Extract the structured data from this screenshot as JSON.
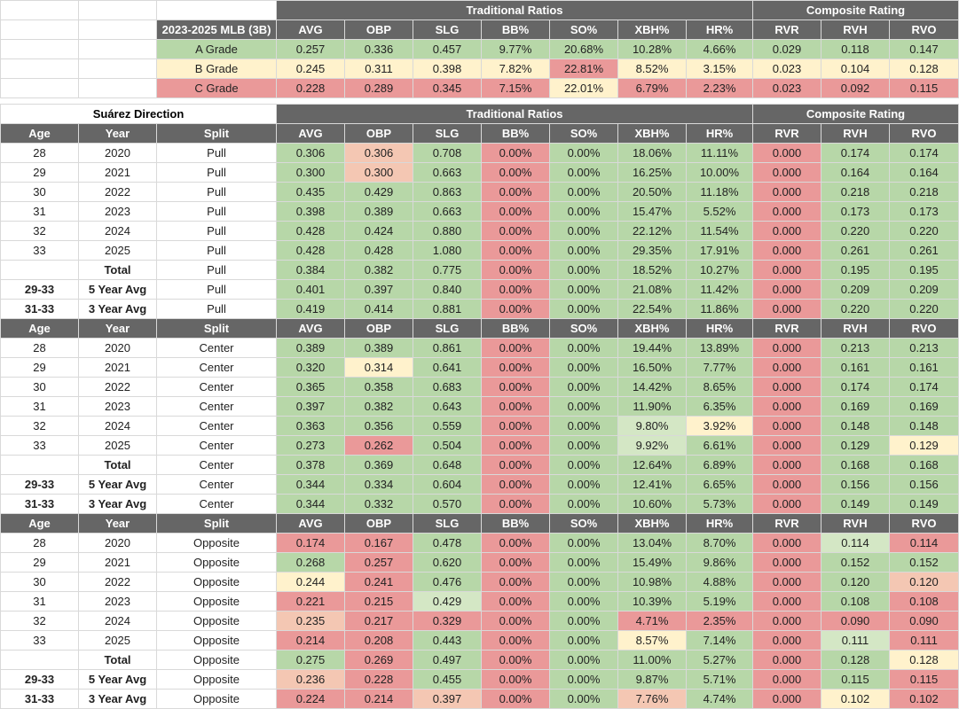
{
  "grade_table": {
    "label": "2023-2025 MLB (3B)",
    "group_traditional": "Traditional Ratios",
    "group_composite": "Composite Rating",
    "columns": [
      "AVG",
      "OBP",
      "SLG",
      "BB%",
      "SO%",
      "XBH%",
      "HR%",
      "RVR",
      "RVH",
      "RVO"
    ],
    "rows": [
      {
        "grade": "A Grade",
        "values": [
          "0.257",
          "0.336",
          "0.457",
          "9.77%",
          "20.68%",
          "10.28%",
          "4.66%",
          "0.029",
          "0.118",
          "0.147"
        ]
      },
      {
        "grade": "B Grade",
        "values": [
          "0.245",
          "0.311",
          "0.398",
          "7.82%",
          "22.81%",
          "8.52%",
          "3.15%",
          "0.023",
          "0.104",
          "0.128"
        ]
      },
      {
        "grade": "C Grade",
        "values": [
          "0.228",
          "0.289",
          "0.345",
          "7.15%",
          "22.01%",
          "6.79%",
          "2.23%",
          "0.023",
          "0.092",
          "0.115"
        ]
      }
    ]
  },
  "colors": {
    "green": "#b7d7a8",
    "light_green": "#d4e7c5",
    "yellow": "#fff2cc",
    "orange": "#f4c7b3",
    "red": "#ea9999",
    "header": "#666666"
  },
  "main": {
    "title": "Suárez Direction",
    "group_traditional": "Traditional Ratios",
    "group_composite": "Composite Rating",
    "columns": [
      "Age",
      "Year",
      "Split",
      "AVG",
      "OBP",
      "SLG",
      "BB%",
      "SO%",
      "XBH%",
      "HR%",
      "RVR",
      "RVH",
      "RVO"
    ],
    "sections": [
      {
        "split": "Pull",
        "rows": [
          [
            "28",
            "2020",
            "Pull",
            "0.306",
            "0.306",
            "0.708",
            "0.00%",
            "0.00%",
            "18.06%",
            "11.11%",
            "0.000",
            "0.174",
            "0.174"
          ],
          [
            "29",
            "2021",
            "Pull",
            "0.300",
            "0.300",
            "0.663",
            "0.00%",
            "0.00%",
            "16.25%",
            "10.00%",
            "0.000",
            "0.164",
            "0.164"
          ],
          [
            "30",
            "2022",
            "Pull",
            "0.435",
            "0.429",
            "0.863",
            "0.00%",
            "0.00%",
            "20.50%",
            "11.18%",
            "0.000",
            "0.218",
            "0.218"
          ],
          [
            "31",
            "2023",
            "Pull",
            "0.398",
            "0.389",
            "0.663",
            "0.00%",
            "0.00%",
            "15.47%",
            "5.52%",
            "0.000",
            "0.173",
            "0.173"
          ],
          [
            "32",
            "2024",
            "Pull",
            "0.428",
            "0.424",
            "0.880",
            "0.00%",
            "0.00%",
            "22.12%",
            "11.54%",
            "0.000",
            "0.220",
            "0.220"
          ],
          [
            "33",
            "2025",
            "Pull",
            "0.428",
            "0.428",
            "1.080",
            "0.00%",
            "0.00%",
            "29.35%",
            "17.91%",
            "0.000",
            "0.261",
            "0.261"
          ],
          [
            "",
            "Total",
            "Pull",
            "0.384",
            "0.382",
            "0.775",
            "0.00%",
            "0.00%",
            "18.52%",
            "10.27%",
            "0.000",
            "0.195",
            "0.195"
          ],
          [
            "29-33",
            "5 Year Avg",
            "Pull",
            "0.401",
            "0.397",
            "0.840",
            "0.00%",
            "0.00%",
            "21.08%",
            "11.42%",
            "0.000",
            "0.209",
            "0.209"
          ],
          [
            "31-33",
            "3 Year Avg",
            "Pull",
            "0.419",
            "0.414",
            "0.881",
            "0.00%",
            "0.00%",
            "22.54%",
            "11.86%",
            "0.000",
            "0.220",
            "0.220"
          ]
        ]
      },
      {
        "split": "Center",
        "rows": [
          [
            "28",
            "2020",
            "Center",
            "0.389",
            "0.389",
            "0.861",
            "0.00%",
            "0.00%",
            "19.44%",
            "13.89%",
            "0.000",
            "0.213",
            "0.213"
          ],
          [
            "29",
            "2021",
            "Center",
            "0.320",
            "0.314",
            "0.641",
            "0.00%",
            "0.00%",
            "16.50%",
            "7.77%",
            "0.000",
            "0.161",
            "0.161"
          ],
          [
            "30",
            "2022",
            "Center",
            "0.365",
            "0.358",
            "0.683",
            "0.00%",
            "0.00%",
            "14.42%",
            "8.65%",
            "0.000",
            "0.174",
            "0.174"
          ],
          [
            "31",
            "2023",
            "Center",
            "0.397",
            "0.382",
            "0.643",
            "0.00%",
            "0.00%",
            "11.90%",
            "6.35%",
            "0.000",
            "0.169",
            "0.169"
          ],
          [
            "32",
            "2024",
            "Center",
            "0.363",
            "0.356",
            "0.559",
            "0.00%",
            "0.00%",
            "9.80%",
            "3.92%",
            "0.000",
            "0.148",
            "0.148"
          ],
          [
            "33",
            "2025",
            "Center",
            "0.273",
            "0.262",
            "0.504",
            "0.00%",
            "0.00%",
            "9.92%",
            "6.61%",
            "0.000",
            "0.129",
            "0.129"
          ],
          [
            "",
            "Total",
            "Center",
            "0.378",
            "0.369",
            "0.648",
            "0.00%",
            "0.00%",
            "12.64%",
            "6.89%",
            "0.000",
            "0.168",
            "0.168"
          ],
          [
            "29-33",
            "5 Year Avg",
            "Center",
            "0.344",
            "0.334",
            "0.604",
            "0.00%",
            "0.00%",
            "12.41%",
            "6.65%",
            "0.000",
            "0.156",
            "0.156"
          ],
          [
            "31-33",
            "3 Year Avg",
            "Center",
            "0.344",
            "0.332",
            "0.570",
            "0.00%",
            "0.00%",
            "10.60%",
            "5.73%",
            "0.000",
            "0.149",
            "0.149"
          ]
        ]
      },
      {
        "split": "Opposite",
        "rows": [
          [
            "28",
            "2020",
            "Opposite",
            "0.174",
            "0.167",
            "0.478",
            "0.00%",
            "0.00%",
            "13.04%",
            "8.70%",
            "0.000",
            "0.114",
            "0.114"
          ],
          [
            "29",
            "2021",
            "Opposite",
            "0.268",
            "0.257",
            "0.620",
            "0.00%",
            "0.00%",
            "15.49%",
            "9.86%",
            "0.000",
            "0.152",
            "0.152"
          ],
          [
            "30",
            "2022",
            "Opposite",
            "0.244",
            "0.241",
            "0.476",
            "0.00%",
            "0.00%",
            "10.98%",
            "4.88%",
            "0.000",
            "0.120",
            "0.120"
          ],
          [
            "31",
            "2023",
            "Opposite",
            "0.221",
            "0.215",
            "0.429",
            "0.00%",
            "0.00%",
            "10.39%",
            "5.19%",
            "0.000",
            "0.108",
            "0.108"
          ],
          [
            "32",
            "2024",
            "Opposite",
            "0.235",
            "0.217",
            "0.329",
            "0.00%",
            "0.00%",
            "4.71%",
            "2.35%",
            "0.000",
            "0.090",
            "0.090"
          ],
          [
            "33",
            "2025",
            "Opposite",
            "0.214",
            "0.208",
            "0.443",
            "0.00%",
            "0.00%",
            "8.57%",
            "7.14%",
            "0.000",
            "0.111",
            "0.111"
          ],
          [
            "",
            "Total",
            "Opposite",
            "0.275",
            "0.269",
            "0.497",
            "0.00%",
            "0.00%",
            "11.00%",
            "5.27%",
            "0.000",
            "0.128",
            "0.128"
          ],
          [
            "29-33",
            "5 Year Avg",
            "Opposite",
            "0.236",
            "0.228",
            "0.455",
            "0.00%",
            "0.00%",
            "9.87%",
            "5.71%",
            "0.000",
            "0.115",
            "0.115"
          ],
          [
            "31-33",
            "3 Year Avg",
            "Opposite",
            "0.224",
            "0.214",
            "0.397",
            "0.00%",
            "0.00%",
            "7.76%",
            "4.74%",
            "0.000",
            "0.102",
            "0.102"
          ]
        ]
      }
    ]
  }
}
